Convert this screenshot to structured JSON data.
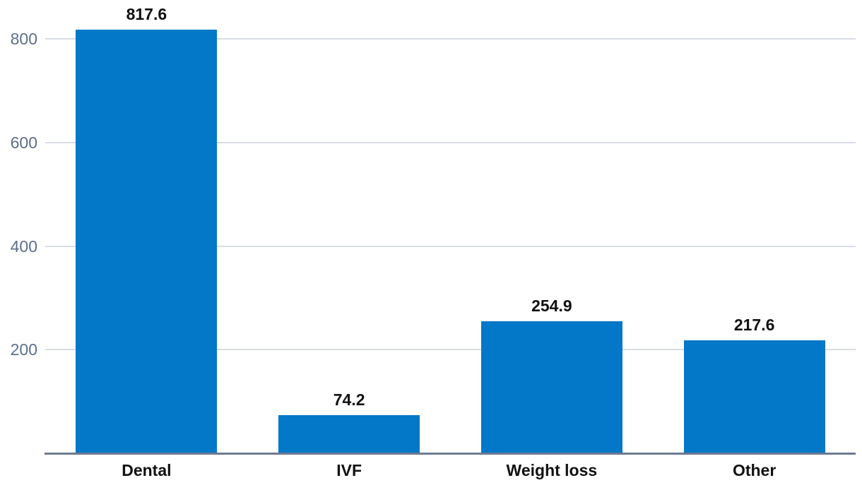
{
  "chart_data": {
    "type": "bar",
    "title": "",
    "xlabel": "",
    "ylabel": "",
    "categories": [
      "Dental",
      "IVF",
      "Weight loss",
      "Other"
    ],
    "values": [
      817.6,
      74.2,
      254.9,
      217.6
    ],
    "value_labels": [
      "817.6",
      "74.2",
      "254.9",
      "217.6"
    ],
    "yticks": [
      200,
      400,
      600,
      800
    ],
    "ytick_labels": [
      "200",
      "400",
      "600",
      "800"
    ],
    "ylim": [
      0,
      875
    ],
    "grid": true,
    "legend": "none",
    "colors": {
      "bar": "#0378c8",
      "gridline": "#d8dce6",
      "axis_line": "#6e7a91",
      "ytick_label": "#5d6e8c",
      "value_label": "#111111",
      "category_label": "#111111"
    }
  }
}
